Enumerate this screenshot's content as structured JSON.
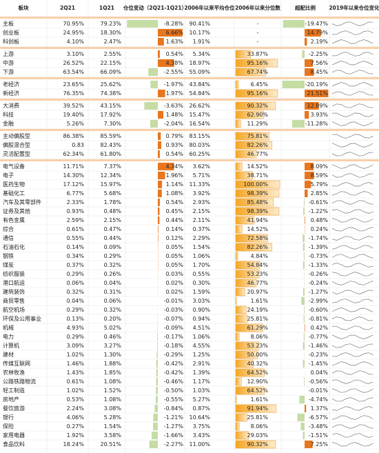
{
  "header": [
    "板块",
    "2Q21",
    "1Q21",
    "仓位变动（2Q21-1Q21）",
    "2006年以来平均仓位",
    "2006年以来分位数",
    "超配比例",
    "2019年以来仓位变化"
  ],
  "groups": [
    {
      "rows": [
        [
          "主板",
          "70.95%",
          "79.23%",
          "-8.28%",
          "90.41%",
          "-",
          "-19.47%"
        ],
        [
          "创业板",
          "24.95%",
          "18.30%",
          "6.66%",
          "10.17%",
          "-",
          "14.79%"
        ],
        [
          "科创板",
          "4.10%",
          "2.47%",
          "1.63%",
          "1.91%",
          "-",
          "2.19%"
        ]
      ]
    },
    {
      "rows": [
        [
          "上游",
          "3.10%",
          "2.55%",
          "0.54%",
          "5.34%",
          "33.87%",
          "-2.25%"
        ],
        [
          "中游",
          "26.52%",
          "22.15%",
          "4.38%",
          "18.97%",
          "95.16%",
          "7.56%"
        ],
        [
          "下游",
          "63.54%",
          "66.09%",
          "-2.55%",
          "55.09%",
          "67.74%",
          "8.45%"
        ]
      ]
    },
    {
      "rows": [
        [
          "老经济",
          "23.65%",
          "25.62%",
          "-1.97%",
          "43.84%",
          "6.45%",
          "-20.19%"
        ],
        [
          "新经济",
          "76.35%",
          "74.38%",
          "1.97%",
          "54.84%",
          "95.16%",
          "21.51%"
        ]
      ]
    },
    {
      "rows": [
        [
          "大消费",
          "39.52%",
          "43.15%",
          "-3.63%",
          "26.62%",
          "90.32%",
          "12.89%"
        ],
        [
          "科技",
          "19.40%",
          "17.92%",
          "1.48%",
          "15.47%",
          "62.90%",
          "3.93%"
        ],
        [
          "金融",
          "5.26%",
          "7.30%",
          "-2.04%",
          "16.54%",
          "11.29%",
          "-11.28%"
        ]
      ]
    },
    {
      "rows": [
        [
          "主动偏股型",
          "86.38%",
          "85.59%",
          "0.79%",
          "83.15%",
          "75.81%"
        ],
        [
          "偏股混合型",
          "0.83",
          "82.43%",
          "0.93%",
          "80.03%",
          "82.26%"
        ],
        [
          "灵活配置型",
          "62.34%",
          "61.80%",
          "0.54%",
          "60.25%",
          "46.77%"
        ]
      ]
    },
    {
      "rows": [
        [
          "电气设备",
          "11.71%",
          "7.37%",
          "4.34%",
          "3.62%",
          "14.52%",
          "8.09%"
        ],
        [
          "电子",
          "14.30%",
          "12.34%",
          "1.96%",
          "5.71%",
          "38.71%",
          "8.59%"
        ],
        [
          "医药生物",
          "17.12%",
          "15.97%",
          "1.14%",
          "11.33%",
          "100.00%",
          "5.79%"
        ],
        [
          "基础化工",
          "6.77%",
          "5.68%",
          "1.08%",
          "3.92%",
          "98.39%",
          "2.85%"
        ],
        [
          "汽车及其零部件",
          "2.33%",
          "1.78%",
          "0.54%",
          "2.93%",
          "85.48%",
          "-0.61%"
        ],
        [
          "证券及其他",
          "0.93%",
          "0.48%",
          "0.45%",
          "2.15%",
          "98.39%",
          "-1.22%"
        ],
        [
          "有色金属",
          "2.59%",
          "2.15%",
          "0.44%",
          "2.11%",
          "41.94%",
          "0.48%"
        ],
        [
          "综合",
          "0.61%",
          "0.47%",
          "0.14%",
          "0.37%",
          "14.52%",
          "0.24%"
        ],
        [
          "通信",
          "0.55%",
          "0.44%",
          "0.12%",
          "2.29%",
          "72.58%",
          "-1.74%"
        ],
        [
          "石油石化",
          "0.14%",
          "0.09%",
          "0.05%",
          "1.54%",
          "82.26%",
          "-1.39%"
        ],
        [
          "钢铁",
          "0.34%",
          "0.29%",
          "0.05%",
          "1.06%",
          "4.84%",
          "-0.73%"
        ],
        [
          "煤炭",
          "0.37%",
          "0.32%",
          "0.05%",
          "1.70%",
          "54.84%",
          "-1.33%"
        ],
        [
          "纺织服装",
          "0.29%",
          "0.26%",
          "0.03%",
          "0.55%",
          "53.23%",
          "-0.26%"
        ],
        [
          "港口航运",
          "0.06%",
          "0.04%",
          "0.02%",
          "0.30%",
          "46.77%",
          "-0.24%"
        ],
        [
          "建筑装饰",
          "0.32%",
          "0.31%",
          "0.02%",
          "1.59%",
          "20.97%",
          "-1.27%"
        ],
        [
          "商贸零售",
          "0.04%",
          "0.06%",
          "-0.01%",
          "3.03%",
          "1.61%",
          "-2.99%"
        ],
        [
          "航空机场",
          "0.29%",
          "0.32%",
          "-0.03%",
          "0.90%",
          "24.19%",
          "-0.60%"
        ],
        [
          "环保及公用事业",
          "0.13%",
          "0.20%",
          "-0.07%",
          "0.94%",
          "25.81%",
          "-0.81%"
        ],
        [
          "机械",
          "4.93%",
          "5.02%",
          "-0.09%",
          "4.51%",
          "61.29%",
          "0.42%"
        ],
        [
          "电力",
          "0.29%",
          "0.46%",
          "-0.17%",
          "1.06%",
          "8.06%",
          "-0.77%"
        ],
        [
          "计算机",
          "3.09%",
          "3.27%",
          "-0.18%",
          "4.55%",
          "53.23%",
          "-1.46%"
        ],
        [
          "建材",
          "1.02%",
          "1.30%",
          "-0.29%",
          "1.25%",
          "50.00%",
          "-0.23%"
        ],
        [
          "传媒互联网",
          "1.46%",
          "1.88%",
          "-0.42%",
          "2.91%",
          "40.32%",
          "-1.45%"
        ],
        [
          "农林牧渔",
          "1.43%",
          "1.85%",
          "-0.42%",
          "1.39%",
          "64.52%",
          "0.04%"
        ],
        [
          "公路铁路物流",
          "0.61%",
          "1.08%",
          "-0.46%",
          "1.17%",
          "12.90%",
          "-0.56%"
        ],
        [
          "轻工制造",
          "1.02%",
          "1.52%",
          "-0.50%",
          "1.03%",
          "64.52%",
          "-0.01%"
        ],
        [
          "房地产",
          "0.53%",
          "1.08%",
          "-0.55%",
          "5.27%",
          "1.61%",
          "-4.74%"
        ],
        [
          "餐饮旅游",
          "2.24%",
          "3.08%",
          "-0.84%",
          "0.87%",
          "91.94%",
          "1.37%"
        ],
        [
          "银行",
          "4.06%",
          "5.28%",
          "-1.21%",
          "10.64%",
          "25.81%",
          "-6.57%"
        ],
        [
          "保险",
          "0.27%",
          "1.54%",
          "-1.27%",
          "3.75%",
          "8.06%",
          "-3.48%"
        ],
        [
          "家用电器",
          "1.92%",
          "3.58%",
          "-1.66%",
          "3.43%",
          "29.03%",
          "-1.51%"
        ],
        [
          "食品饮料",
          "18.24%",
          "20.51%",
          "-2.27%",
          "11.00%",
          "90.32%",
          "7.25%"
        ]
      ]
    }
  ]
}
